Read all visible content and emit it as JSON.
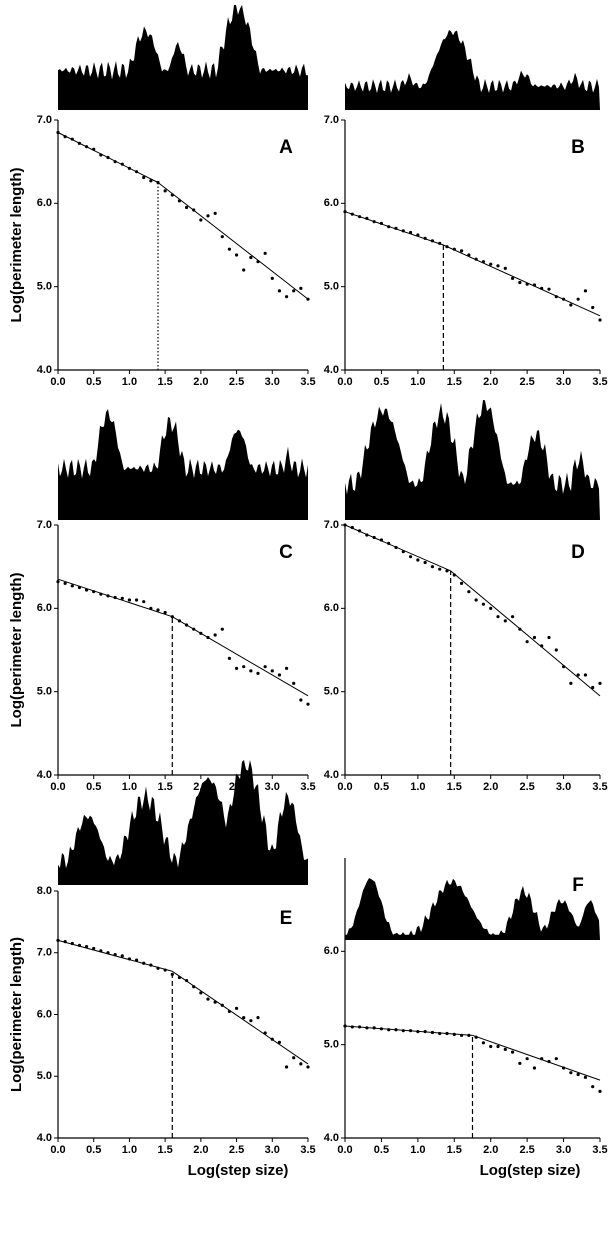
{
  "chart_data": [
    {
      "type": "scatter",
      "label": "A",
      "ylabel": "Log(perimeter length)",
      "x": [
        0,
        0.1,
        0.2,
        0.3,
        0.4,
        0.5,
        0.6,
        0.7,
        0.8,
        0.9,
        1.0,
        1.1,
        1.2,
        1.3,
        1.4,
        1.5,
        1.6,
        1.7,
        1.8,
        1.9,
        2.0,
        2.1,
        2.2,
        2.3,
        2.4,
        2.5,
        2.6,
        2.7,
        2.8,
        2.9,
        3.0,
        3.1,
        3.2,
        3.3,
        3.4,
        3.5
      ],
      "values": [
        6.85,
        6.8,
        6.77,
        6.72,
        6.68,
        6.65,
        6.58,
        6.55,
        6.5,
        6.47,
        6.42,
        6.38,
        6.31,
        6.27,
        6.25,
        6.15,
        6.1,
        6.03,
        5.95,
        5.92,
        5.8,
        5.85,
        5.88,
        5.6,
        5.45,
        5.38,
        5.2,
        5.35,
        5.3,
        5.4,
        5.1,
        4.95,
        4.88,
        4.95,
        4.98,
        4.85
      ],
      "fit": [
        {
          "x": [
            0,
            1.4
          ],
          "y": [
            6.85,
            6.25
          ]
        },
        {
          "x": [
            1.4,
            3.5
          ],
          "y": [
            6.25,
            4.85
          ]
        }
      ],
      "breakpoint_style": "dotted",
      "xlim": [
        0,
        3.5
      ],
      "ylim": [
        4,
        7
      ],
      "xticks": [
        {
          "value": 0,
          "label": "0.0"
        },
        {
          "value": 0.5,
          "label": "0.5"
        },
        {
          "value": 1,
          "label": "1.0"
        },
        {
          "value": 1.5,
          "label": "1.5"
        },
        {
          "value": 2,
          "label": "2.0"
        },
        {
          "value": 2.5,
          "label": "2.5"
        },
        {
          "value": 3,
          "label": "3.0"
        },
        {
          "value": 3.5,
          "label": "3.5"
        }
      ],
      "yticks": [
        {
          "value": 4,
          "label": "4.0"
        },
        {
          "value": 5,
          "label": "5.0"
        },
        {
          "value": 6,
          "label": "6.0"
        },
        {
          "value": 7,
          "label": "7.0"
        }
      ],
      "color": "#000000"
    },
    {
      "type": "scatter",
      "label": "B",
      "x": [
        0,
        0.1,
        0.2,
        0.3,
        0.4,
        0.5,
        0.6,
        0.7,
        0.8,
        0.9,
        1.0,
        1.1,
        1.2,
        1.3,
        1.4,
        1.5,
        1.6,
        1.7,
        1.8,
        1.9,
        2.0,
        2.1,
        2.2,
        2.3,
        2.4,
        2.5,
        2.6,
        2.7,
        2.8,
        2.9,
        3.0,
        3.1,
        3.2,
        3.3,
        3.4,
        3.5
      ],
      "values": [
        5.9,
        5.87,
        5.84,
        5.82,
        5.78,
        5.76,
        5.72,
        5.7,
        5.67,
        5.65,
        5.62,
        5.58,
        5.55,
        5.52,
        5.48,
        5.45,
        5.43,
        5.38,
        5.33,
        5.3,
        5.27,
        5.25,
        5.22,
        5.1,
        5.05,
        5.03,
        5.02,
        4.98,
        4.97,
        4.88,
        4.85,
        4.78,
        4.85,
        4.95,
        4.75,
        4.6
      ],
      "fit": [
        {
          "x": [
            0,
            1.35
          ],
          "y": [
            5.9,
            5.5
          ]
        },
        {
          "x": [
            1.35,
            3.5
          ],
          "y": [
            5.5,
            4.65
          ]
        }
      ],
      "breakpoint_style": "dashed",
      "xlim": [
        0,
        3.5
      ],
      "ylim": [
        4,
        7
      ],
      "xticks": [
        {
          "value": 0,
          "label": "0.0"
        },
        {
          "value": 0.5,
          "label": "0.5"
        },
        {
          "value": 1,
          "label": "1.0"
        },
        {
          "value": 1.5,
          "label": "1.5"
        },
        {
          "value": 2,
          "label": "2.0"
        },
        {
          "value": 2.5,
          "label": "2.5"
        },
        {
          "value": 3,
          "label": "3.0"
        },
        {
          "value": 3.5,
          "label": "3.5"
        }
      ],
      "yticks": [
        {
          "value": 4,
          "label": "4.0"
        },
        {
          "value": 5,
          "label": "5.0"
        },
        {
          "value": 6,
          "label": "6.0"
        },
        {
          "value": 7,
          "label": "7.0"
        }
      ],
      "color": "#000000"
    },
    {
      "type": "scatter",
      "label": "C",
      "ylabel": "Log(perimeter length)",
      "x": [
        0,
        0.1,
        0.2,
        0.3,
        0.4,
        0.5,
        0.6,
        0.7,
        0.8,
        0.9,
        1.0,
        1.1,
        1.2,
        1.3,
        1.4,
        1.5,
        1.6,
        1.7,
        1.8,
        1.9,
        2.0,
        2.1,
        2.2,
        2.3,
        2.4,
        2.5,
        2.6,
        2.7,
        2.8,
        2.9,
        3.0,
        3.1,
        3.2,
        3.3,
        3.4,
        3.5
      ],
      "values": [
        6.32,
        6.3,
        6.27,
        6.25,
        6.22,
        6.2,
        6.17,
        6.15,
        6.13,
        6.12,
        6.1,
        6.1,
        6.08,
        6.0,
        5.98,
        5.95,
        5.9,
        5.85,
        5.8,
        5.75,
        5.7,
        5.65,
        5.68,
        5.75,
        5.4,
        5.28,
        5.3,
        5.25,
        5.22,
        5.3,
        5.25,
        5.2,
        5.28,
        5.1,
        4.9,
        4.85
      ],
      "fit": [
        {
          "x": [
            0,
            1.6
          ],
          "y": [
            6.35,
            5.9
          ]
        },
        {
          "x": [
            1.6,
            3.5
          ],
          "y": [
            5.9,
            4.95
          ]
        }
      ],
      "breakpoint_style": "dashed",
      "xlim": [
        0,
        3.5
      ],
      "ylim": [
        4,
        7
      ],
      "xticks": [
        {
          "value": 0,
          "label": "0.0"
        },
        {
          "value": 0.5,
          "label": "0.5"
        },
        {
          "value": 1,
          "label": "1.0"
        },
        {
          "value": 1.5,
          "label": "1.5"
        },
        {
          "value": 2,
          "label": "2.0"
        },
        {
          "value": 2.5,
          "label": "2.5"
        },
        {
          "value": 3,
          "label": "3.0"
        },
        {
          "value": 3.5,
          "label": "3.5"
        }
      ],
      "yticks": [
        {
          "value": 4,
          "label": "4.0"
        },
        {
          "value": 5,
          "label": "5.0"
        },
        {
          "value": 6,
          "label": "6.0"
        },
        {
          "value": 7,
          "label": "7.0"
        }
      ],
      "color": "#000000"
    },
    {
      "type": "scatter",
      "label": "D",
      "x": [
        0,
        0.1,
        0.2,
        0.3,
        0.4,
        0.5,
        0.6,
        0.7,
        0.8,
        0.9,
        1.0,
        1.1,
        1.2,
        1.3,
        1.4,
        1.5,
        1.6,
        1.7,
        1.8,
        1.9,
        2.0,
        2.1,
        2.2,
        2.3,
        2.4,
        2.5,
        2.6,
        2.7,
        2.8,
        2.9,
        3.0,
        3.1,
        3.2,
        3.3,
        3.4,
        3.5
      ],
      "values": [
        7.0,
        6.97,
        6.93,
        6.88,
        6.85,
        6.82,
        6.78,
        6.73,
        6.68,
        6.62,
        6.58,
        6.55,
        6.5,
        6.47,
        6.45,
        6.4,
        6.3,
        6.2,
        6.1,
        6.05,
        6.0,
        5.9,
        5.85,
        5.9,
        5.75,
        5.6,
        5.65,
        5.55,
        5.65,
        5.5,
        5.3,
        5.1,
        5.2,
        5.2,
        5.05,
        5.1
      ],
      "fit": [
        {
          "x": [
            0,
            1.45
          ],
          "y": [
            7.0,
            6.45
          ]
        },
        {
          "x": [
            1.45,
            3.5
          ],
          "y": [
            6.45,
            4.95
          ]
        }
      ],
      "breakpoint_style": "dashed",
      "xlim": [
        0,
        3.5
      ],
      "ylim": [
        4,
        7
      ],
      "xticks": [
        {
          "value": 0,
          "label": "0.0"
        },
        {
          "value": 0.5,
          "label": "0.5"
        },
        {
          "value": 1,
          "label": "1.0"
        },
        {
          "value": 1.5,
          "label": "1.5"
        },
        {
          "value": 2,
          "label": "2.0"
        },
        {
          "value": 2.5,
          "label": "2.5"
        },
        {
          "value": 3,
          "label": "3.0"
        },
        {
          "value": 3.5,
          "label": "3.5"
        }
      ],
      "yticks": [
        {
          "value": 4,
          "label": "4.0"
        },
        {
          "value": 5,
          "label": "5.0"
        },
        {
          "value": 6,
          "label": "6.0"
        },
        {
          "value": 7,
          "label": "7.0"
        }
      ],
      "color": "#000000"
    },
    {
      "type": "scatter",
      "label": "E",
      "ylabel": "Log(perimeter length)",
      "xlabel": "Log(step size)",
      "x": [
        0,
        0.1,
        0.2,
        0.3,
        0.4,
        0.5,
        0.6,
        0.7,
        0.8,
        0.9,
        1.0,
        1.1,
        1.2,
        1.3,
        1.4,
        1.5,
        1.6,
        1.7,
        1.8,
        1.9,
        2.0,
        2.1,
        2.2,
        2.3,
        2.4,
        2.5,
        2.6,
        2.7,
        2.8,
        2.9,
        3.0,
        3.1,
        3.2,
        3.3,
        3.4,
        3.5
      ],
      "values": [
        7.2,
        7.18,
        7.15,
        7.12,
        7.1,
        7.07,
        7.03,
        7.0,
        6.97,
        6.95,
        6.9,
        6.88,
        6.83,
        6.8,
        6.75,
        6.72,
        6.65,
        6.6,
        6.55,
        6.45,
        6.35,
        6.25,
        6.2,
        6.15,
        6.05,
        6.1,
        5.95,
        5.9,
        5.95,
        5.7,
        5.6,
        5.55,
        5.15,
        5.3,
        5.2,
        5.15
      ],
      "fit": [
        {
          "x": [
            0,
            1.6
          ],
          "y": [
            7.2,
            6.7
          ]
        },
        {
          "x": [
            1.6,
            3.5
          ],
          "y": [
            6.7,
            5.2
          ]
        }
      ],
      "breakpoint_style": "dashed",
      "xlim": [
        0,
        3.5
      ],
      "ylim": [
        4,
        8
      ],
      "xticks": [
        {
          "value": 0,
          "label": "0.0"
        },
        {
          "value": 0.5,
          "label": "0.5"
        },
        {
          "value": 1,
          "label": "1.0"
        },
        {
          "value": 1.5,
          "label": "1.5"
        },
        {
          "value": 2,
          "label": "2.0"
        },
        {
          "value": 2.5,
          "label": "2.5"
        },
        {
          "value": 3,
          "label": "3.0"
        },
        {
          "value": 3.5,
          "label": "3.5"
        }
      ],
      "yticks": [
        {
          "value": 4,
          "label": "4.0"
        },
        {
          "value": 5,
          "label": "5.0"
        },
        {
          "value": 6,
          "label": "6.0"
        },
        {
          "value": 7,
          "label": "7.0"
        },
        {
          "value": 8,
          "label": "8.0"
        }
      ],
      "color": "#000000"
    },
    {
      "type": "scatter",
      "label": "F",
      "xlabel": "Log(step size)",
      "x": [
        0,
        0.1,
        0.2,
        0.3,
        0.4,
        0.5,
        0.6,
        0.7,
        0.8,
        0.9,
        1.0,
        1.1,
        1.2,
        1.3,
        1.4,
        1.5,
        1.6,
        1.7,
        1.8,
        1.9,
        2.0,
        2.1,
        2.2,
        2.3,
        2.4,
        2.5,
        2.6,
        2.7,
        2.8,
        2.9,
        3.0,
        3.1,
        3.2,
        3.3,
        3.4,
        3.5
      ],
      "values": [
        5.2,
        5.19,
        5.19,
        5.18,
        5.18,
        5.17,
        5.16,
        5.16,
        5.15,
        5.15,
        5.14,
        5.14,
        5.13,
        5.12,
        5.12,
        5.11,
        5.1,
        5.1,
        5.08,
        5.02,
        4.98,
        4.98,
        4.95,
        4.92,
        4.8,
        4.85,
        4.75,
        4.85,
        4.82,
        4.85,
        4.75,
        4.7,
        4.68,
        4.65,
        4.55,
        4.5
      ],
      "fit": [
        {
          "x": [
            0,
            1.75
          ],
          "y": [
            5.2,
            5.1
          ]
        },
        {
          "x": [
            1.75,
            3.5
          ],
          "y": [
            5.1,
            4.62
          ]
        }
      ],
      "breakpoint_style": "dashed",
      "xlim": [
        0,
        3.5
      ],
      "ylim": [
        4,
        7
      ],
      "xticks": [
        {
          "value": 0,
          "label": "0.0"
        },
        {
          "value": 0.5,
          "label": "0.5"
        },
        {
          "value": 1,
          "label": "1.0"
        },
        {
          "value": 1.5,
          "label": "1.5"
        },
        {
          "value": 2,
          "label": "2.0"
        },
        {
          "value": 2.5,
          "label": "2.5"
        },
        {
          "value": 3,
          "label": "3.0"
        },
        {
          "value": 3.5,
          "label": "3.5"
        }
      ],
      "yticks": [
        {
          "value": 4,
          "label": "4.0"
        },
        {
          "value": 5,
          "label": "5.0"
        },
        {
          "value": 6,
          "label": "6.0"
        }
      ],
      "color": "#000000"
    }
  ]
}
